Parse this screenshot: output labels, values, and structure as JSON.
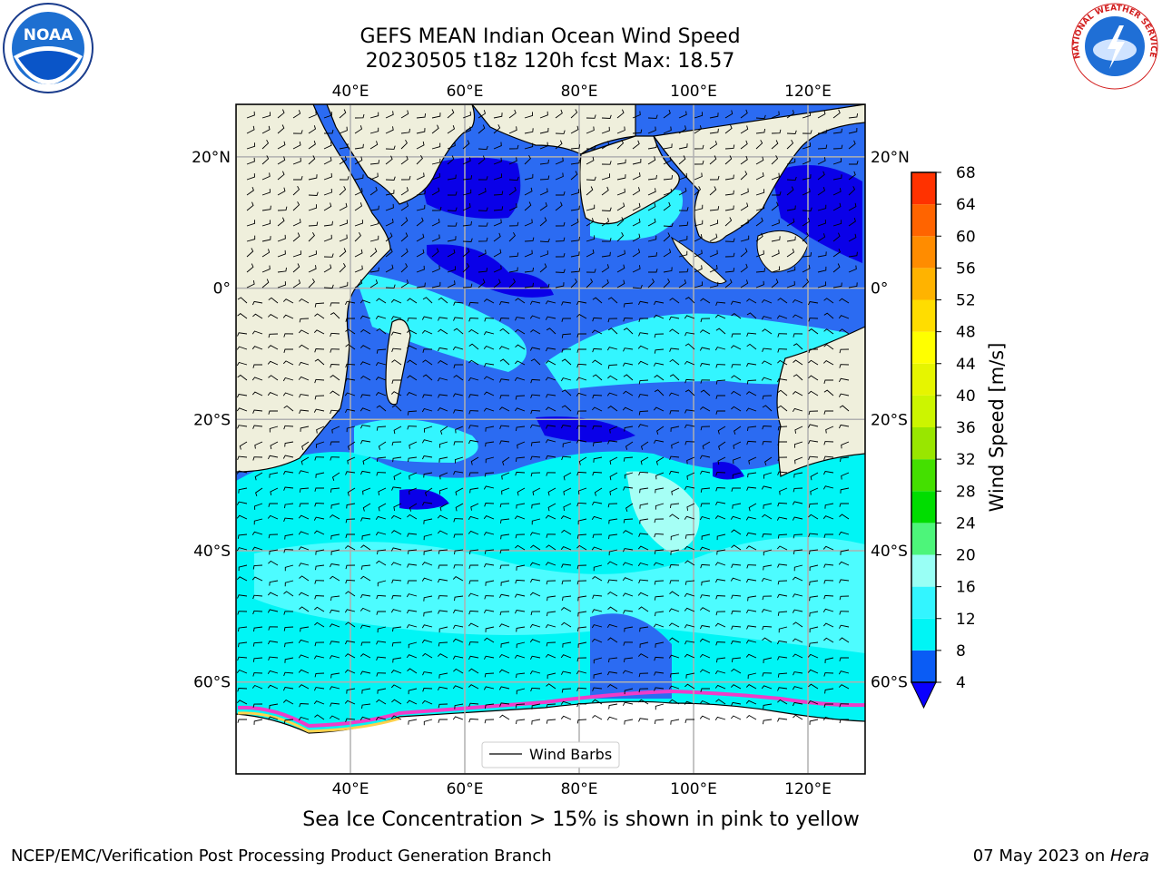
{
  "header": {
    "title_line1": "GEFS MEAN Indian Ocean Wind Speed",
    "title_line2": "20230505 t18z 120h fcst   Max: 18.57"
  },
  "logos": {
    "left": {
      "icon": "noaa-logo",
      "text": "NOAA"
    },
    "right": {
      "icon": "nws-logo",
      "text": "NATIONAL WEATHER SERVICE"
    }
  },
  "map": {
    "projection": "cylindrical",
    "extent": {
      "lon_min": 20,
      "lon_max": 130,
      "lat_min": -74,
      "lat_max": 28
    },
    "lon_ticks": [
      {
        "value": 40,
        "label": "40°E"
      },
      {
        "value": 60,
        "label": "60°E"
      },
      {
        "value": 80,
        "label": "80°E"
      },
      {
        "value": 100,
        "label": "100°E"
      },
      {
        "value": 120,
        "label": "120°E"
      }
    ],
    "lat_ticks": [
      {
        "value": 20,
        "label": "20°N"
      },
      {
        "value": 0,
        "label": "0°"
      },
      {
        "value": -20,
        "label": "20°S"
      },
      {
        "value": -40,
        "label": "40°S"
      },
      {
        "value": -60,
        "label": "60°S"
      }
    ],
    "grid": true,
    "legend": {
      "label": "Wind Barbs",
      "placement": "bottom-center"
    },
    "land_color": "#efefdc",
    "ocean_base_color": "#2b6bf2"
  },
  "colorbar": {
    "label": "Wind Speed [m/s]",
    "levels": [
      4,
      8,
      12,
      16,
      20,
      24,
      28,
      32,
      36,
      40,
      44,
      48,
      52,
      56,
      60,
      64,
      68
    ],
    "labels": [
      "4",
      "8",
      "12",
      "16",
      "20",
      "24",
      "28",
      "32",
      "36",
      "40",
      "44",
      "48",
      "52",
      "56",
      "60",
      "64",
      "68"
    ],
    "colors": [
      "#0a5cf5",
      "#00f5f5",
      "#33f5ff",
      "#99fff5",
      "#4df57a",
      "#00dd00",
      "#44e000",
      "#99e600",
      "#ccf500",
      "#e6f500",
      "#ffff00",
      "#ffdd00",
      "#ffb300",
      "#ff8c00",
      "#ff6400",
      "#ff3200"
    ],
    "extend_under_color": "#0a00ff",
    "extend": "min"
  },
  "footer": {
    "note": "Sea Ice Concentration > 15% is shown in pink to yellow",
    "left": "NCEP/EMC/Verification Post Processing Product Generation Branch",
    "right_date": "07 May 2023 on ",
    "right_machine": "Hera"
  }
}
